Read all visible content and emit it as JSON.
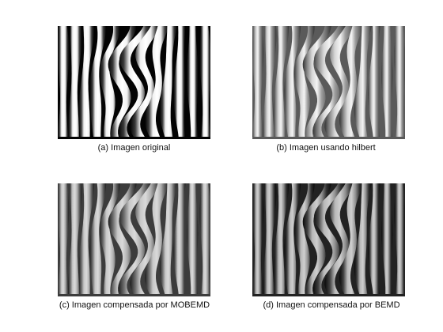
{
  "figure": {
    "panels": [
      {
        "id": "a",
        "caption": "(a) Imagen original",
        "image": "fringe-pattern-original",
        "style": "high-contrast"
      },
      {
        "id": "b",
        "caption": "(b) Imagen usando hilbert",
        "image": "fringe-pattern-hilbert",
        "style": "gray-ridged"
      },
      {
        "id": "c",
        "caption": "(c) Imagen compensada por MOBEMD",
        "image": "fringe-pattern-mobemd",
        "style": "gray-soft"
      },
      {
        "id": "d",
        "caption": "(d) Imagen compensada por BEMD",
        "image": "fringe-pattern-bemd",
        "style": "dark-soft"
      }
    ]
  }
}
